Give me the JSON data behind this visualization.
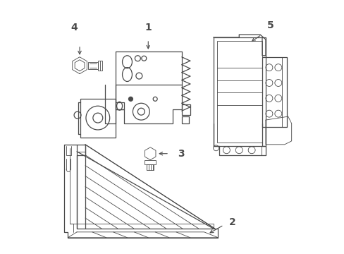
{
  "background_color": "#ffffff",
  "line_color": "#4a4a4a",
  "line_width": 0.9,
  "thin_lw": 0.6,
  "figsize": [
    4.89,
    3.6
  ],
  "dpi": 100,
  "label_fontsize": 10,
  "label_fontweight": "bold"
}
